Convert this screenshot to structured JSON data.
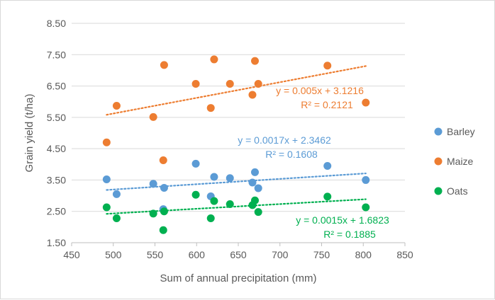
{
  "chart_data": {
    "type": "scatter",
    "xlabel": "Sum of annual precipitation (mm)",
    "ylabel": "Grain yield (t/ha)",
    "xlim": [
      450,
      850
    ],
    "ylim": [
      1.5,
      8.5
    ],
    "x_ticks": [
      "450",
      "500",
      "550",
      "600",
      "650",
      "700",
      "750",
      "800",
      "850"
    ],
    "y_ticks": [
      "1.50",
      "2.50",
      "3.50",
      "4.50",
      "5.50",
      "6.50",
      "7.50",
      "8.50"
    ],
    "grid": "horizontal",
    "legend_position": "right",
    "series": [
      {
        "name": "Barley",
        "color": "#5b9bd5",
        "points": [
          [
            492,
            3.52
          ],
          [
            504,
            3.05
          ],
          [
            548,
            3.38
          ],
          [
            560,
            2.57
          ],
          [
            561,
            3.25
          ],
          [
            599,
            4.02
          ],
          [
            617,
            2.98
          ],
          [
            621,
            3.6
          ],
          [
            640,
            3.56
          ],
          [
            667,
            3.42
          ],
          [
            670,
            3.75
          ],
          [
            674,
            3.24
          ],
          [
            757,
            3.95
          ],
          [
            803,
            3.5
          ]
        ],
        "trendline": {
          "slope": 0.0017,
          "intercept": 2.3462,
          "x_range": [
            492,
            803
          ]
        },
        "equation": "y = 0.0017x + 2.3462",
        "r2": "R² = 0.1608"
      },
      {
        "name": "Maize",
        "color": "#ed7d31",
        "points": [
          [
            492,
            4.7
          ],
          [
            504,
            5.87
          ],
          [
            548,
            5.51
          ],
          [
            560,
            4.13
          ],
          [
            561,
            7.17
          ],
          [
            599,
            6.57
          ],
          [
            617,
            5.8
          ],
          [
            621,
            7.35
          ],
          [
            640,
            6.57
          ],
          [
            667,
            6.22
          ],
          [
            670,
            7.3
          ],
          [
            674,
            6.57
          ],
          [
            757,
            7.15
          ],
          [
            803,
            5.97
          ]
        ],
        "trendline": {
          "slope": 0.005,
          "intercept": 3.1216,
          "x_range": [
            492,
            803
          ]
        },
        "equation": "y = 0.005x + 3.1216",
        "r2": "R² = 0.2121"
      },
      {
        "name": "Oats",
        "color": "#00b050",
        "points": [
          [
            492,
            2.63
          ],
          [
            504,
            2.28
          ],
          [
            548,
            2.43
          ],
          [
            560,
            1.9
          ],
          [
            561,
            2.5
          ],
          [
            599,
            3.03
          ],
          [
            617,
            2.28
          ],
          [
            621,
            2.83
          ],
          [
            640,
            2.73
          ],
          [
            667,
            2.7
          ],
          [
            670,
            2.85
          ],
          [
            674,
            2.48
          ],
          [
            757,
            2.97
          ],
          [
            803,
            2.63
          ]
        ],
        "trendline": {
          "slope": 0.0015,
          "intercept": 1.6823,
          "x_range": [
            492,
            803
          ]
        },
        "equation": "y = 0.0015x + 1.6823",
        "r2": "R² = 0.1885"
      }
    ]
  }
}
